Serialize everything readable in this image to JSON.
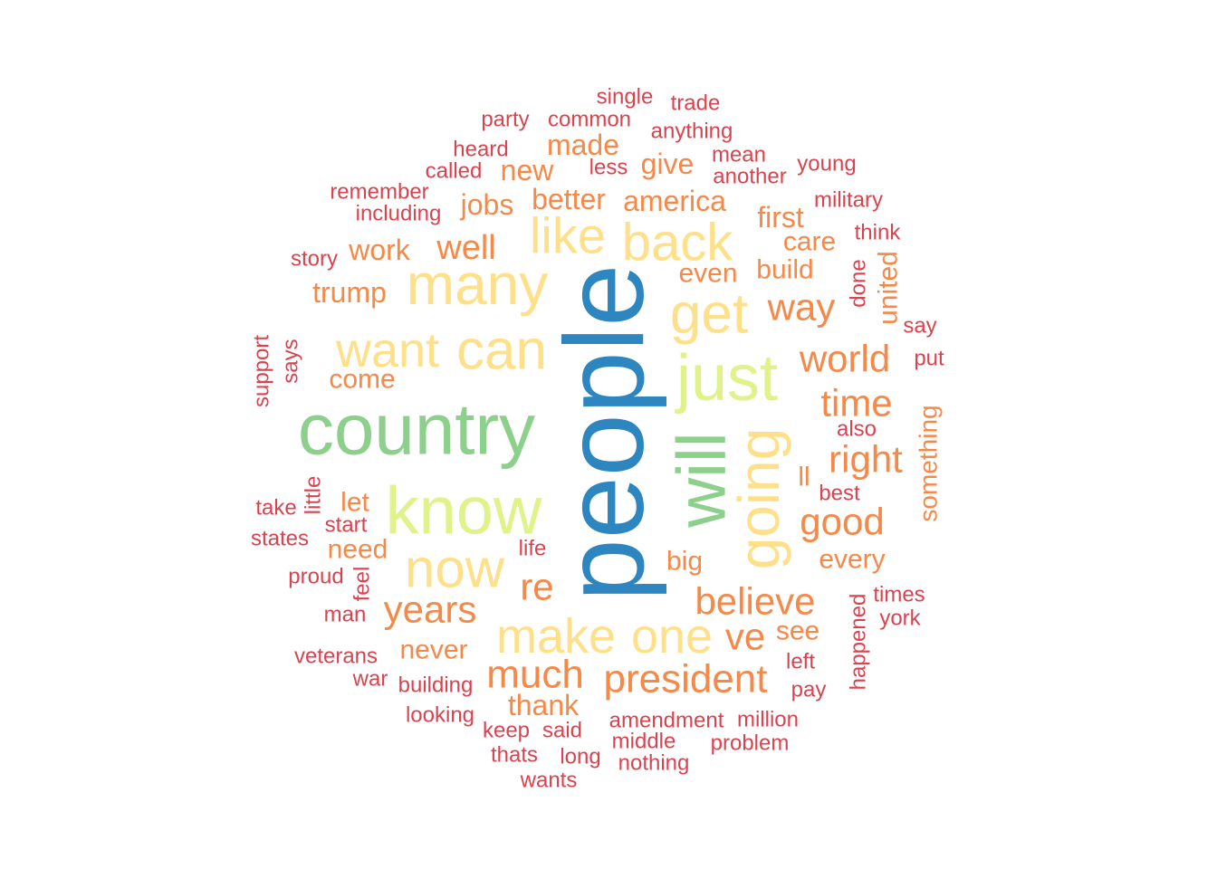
{
  "palette": {
    "blue": "#2E86C1",
    "green": "#8CD08C",
    "lime": "#E0F28A",
    "yellow": "#FFE08A",
    "orange": "#F5894A",
    "red": "#D9434F"
  },
  "words": [
    {
      "text": "people",
      "color": "blue"
    },
    {
      "text": "country",
      "color": "green"
    },
    {
      "text": "will",
      "color": "green"
    },
    {
      "text": "know",
      "color": "lime"
    },
    {
      "text": "just",
      "color": "lime"
    },
    {
      "text": "going",
      "color": "yellow"
    },
    {
      "text": "many",
      "color": "yellow"
    },
    {
      "text": "can",
      "color": "yellow"
    },
    {
      "text": "get",
      "color": "yellow"
    },
    {
      "text": "now",
      "color": "yellow"
    },
    {
      "text": "back",
      "color": "yellow"
    },
    {
      "text": "like",
      "color": "yellow"
    },
    {
      "text": "want",
      "color": "yellow"
    },
    {
      "text": "make",
      "color": "yellow"
    },
    {
      "text": "one",
      "color": "yellow"
    },
    {
      "text": "president",
      "color": "orange"
    },
    {
      "text": "much",
      "color": "orange"
    },
    {
      "text": "believe",
      "color": "orange"
    },
    {
      "text": "years",
      "color": "orange"
    },
    {
      "text": "world",
      "color": "orange"
    },
    {
      "text": "time",
      "color": "orange"
    },
    {
      "text": "right",
      "color": "orange"
    },
    {
      "text": "good",
      "color": "orange"
    },
    {
      "text": "way",
      "color": "orange"
    },
    {
      "text": "well",
      "color": "orange"
    },
    {
      "text": "re",
      "color": "orange"
    },
    {
      "text": "ve",
      "color": "orange"
    },
    {
      "text": "america",
      "color": "orange"
    },
    {
      "text": "better",
      "color": "orange"
    },
    {
      "text": "thank",
      "color": "orange"
    },
    {
      "text": "made",
      "color": "orange"
    },
    {
      "text": "trump",
      "color": "orange"
    },
    {
      "text": "work",
      "color": "orange"
    },
    {
      "text": "jobs",
      "color": "orange"
    },
    {
      "text": "new",
      "color": "orange"
    },
    {
      "text": "give",
      "color": "orange"
    },
    {
      "text": "first",
      "color": "orange"
    },
    {
      "text": "care",
      "color": "orange"
    },
    {
      "text": "build",
      "color": "orange"
    },
    {
      "text": "even",
      "color": "orange"
    },
    {
      "text": "come",
      "color": "orange"
    },
    {
      "text": "need",
      "color": "orange"
    },
    {
      "text": "let",
      "color": "orange"
    },
    {
      "text": "never",
      "color": "orange"
    },
    {
      "text": "every",
      "color": "orange"
    },
    {
      "text": "big",
      "color": "orange"
    },
    {
      "text": "see",
      "color": "orange"
    },
    {
      "text": "ll",
      "color": "orange"
    },
    {
      "text": "united",
      "color": "orange"
    },
    {
      "text": "something",
      "color": "orange"
    },
    {
      "text": "single",
      "color": "red"
    },
    {
      "text": "trade",
      "color": "red"
    },
    {
      "text": "party",
      "color": "red"
    },
    {
      "text": "common",
      "color": "red"
    },
    {
      "text": "anything",
      "color": "red"
    },
    {
      "text": "heard",
      "color": "red"
    },
    {
      "text": "mean",
      "color": "red"
    },
    {
      "text": "less",
      "color": "red"
    },
    {
      "text": "called",
      "color": "red"
    },
    {
      "text": "young",
      "color": "red"
    },
    {
      "text": "another",
      "color": "red"
    },
    {
      "text": "remember",
      "color": "red"
    },
    {
      "text": "military",
      "color": "red"
    },
    {
      "text": "including",
      "color": "red"
    },
    {
      "text": "think",
      "color": "red"
    },
    {
      "text": "story",
      "color": "red"
    },
    {
      "text": "done",
      "color": "red"
    },
    {
      "text": "say",
      "color": "red"
    },
    {
      "text": "support",
      "color": "red"
    },
    {
      "text": "says",
      "color": "red"
    },
    {
      "text": "put",
      "color": "red"
    },
    {
      "text": "also",
      "color": "red"
    },
    {
      "text": "take",
      "color": "red"
    },
    {
      "text": "little",
      "color": "red"
    },
    {
      "text": "best",
      "color": "red"
    },
    {
      "text": "start",
      "color": "red"
    },
    {
      "text": "states",
      "color": "red"
    },
    {
      "text": "life",
      "color": "red"
    },
    {
      "text": "proud",
      "color": "red"
    },
    {
      "text": "feel",
      "color": "red"
    },
    {
      "text": "times",
      "color": "red"
    },
    {
      "text": "happened",
      "color": "red"
    },
    {
      "text": "man",
      "color": "red"
    },
    {
      "text": "york",
      "color": "red"
    },
    {
      "text": "veterans",
      "color": "red"
    },
    {
      "text": "left",
      "color": "red"
    },
    {
      "text": "war",
      "color": "red"
    },
    {
      "text": "building",
      "color": "red"
    },
    {
      "text": "pay",
      "color": "red"
    },
    {
      "text": "looking",
      "color": "red"
    },
    {
      "text": "amendment",
      "color": "red"
    },
    {
      "text": "million",
      "color": "red"
    },
    {
      "text": "keep",
      "color": "red"
    },
    {
      "text": "said",
      "color": "red"
    },
    {
      "text": "middle",
      "color": "red"
    },
    {
      "text": "problem",
      "color": "red"
    },
    {
      "text": "thats",
      "color": "red"
    },
    {
      "text": "long",
      "color": "red"
    },
    {
      "text": "nothing",
      "color": "red"
    },
    {
      "text": "wants",
      "color": "red"
    }
  ]
}
